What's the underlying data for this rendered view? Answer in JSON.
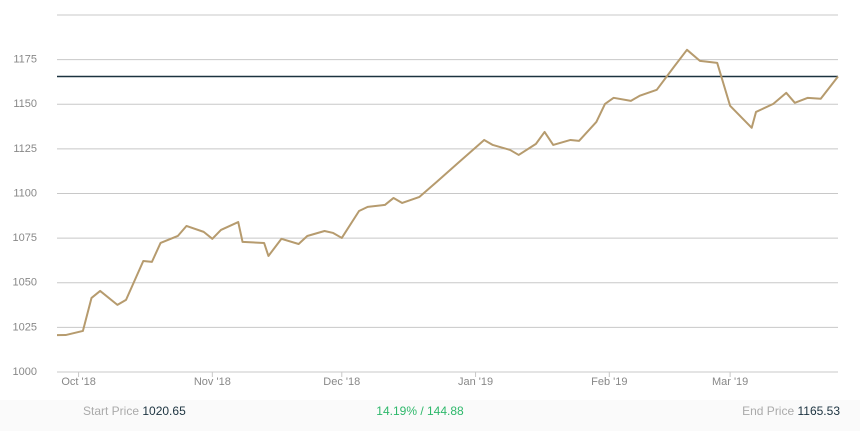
{
  "chart_data": {
    "type": "line",
    "x": [
      -5,
      -3,
      1,
      3,
      5,
      9,
      11,
      15,
      17,
      19,
      23,
      25,
      29,
      31,
      33,
      37,
      38,
      43,
      44,
      47,
      51,
      53,
      57,
      59,
      61,
      65,
      67,
      71,
      73,
      75,
      79,
      83,
      88,
      94,
      96,
      100,
      102,
      106,
      108,
      110,
      114,
      116,
      120,
      122,
      124,
      128,
      130,
      134,
      138,
      141,
      144,
      148,
      151,
      156,
      157,
      161,
      164,
      166,
      169,
      172,
      176
    ],
    "values": [
      1020.65,
      1020.7,
      1023,
      1041.5,
      1045.4,
      1037.6,
      1040.4,
      1062.2,
      1061.7,
      1072.3,
      1076.2,
      1081.8,
      1078.5,
      1074.6,
      1079.6,
      1084,
      1072.9,
      1072.3,
      1065,
      1074.6,
      1071.7,
      1076.2,
      1079,
      1077.9,
      1075.1,
      1090.2,
      1092.5,
      1093.6,
      1097.5,
      1094.7,
      1098.1,
      1106.5,
      1117.2,
      1130,
      1127.2,
      1124.4,
      1121.6,
      1127.8,
      1134.5,
      1127.2,
      1130,
      1129.5,
      1140.1,
      1150.2,
      1153.6,
      1151.9,
      1154.7,
      1158.1,
      1171,
      1180.5,
      1174.3,
      1173.2,
      1149.1,
      1136.8,
      1145.7,
      1150.2,
      1156.4,
      1150.8,
      1153.6,
      1153.1,
      1165.53
    ],
    "color": "#b69b6e",
    "reference_line": 1165.53,
    "reference_color": "#1c3340",
    "xlim": [
      -5,
      176
    ],
    "xticks": [
      {
        "value": 0,
        "label": "Oct '18"
      },
      {
        "value": 31,
        "label": "Nov '18"
      },
      {
        "value": 61,
        "label": "Dec '18"
      },
      {
        "value": 92,
        "label": "Jan '19"
      },
      {
        "value": 123,
        "label": "Feb '19"
      },
      {
        "value": 151,
        "label": "Mar '19"
      }
    ],
    "ylim": [
      1000,
      1200
    ],
    "yticks": [
      1000,
      1025,
      1050,
      1075,
      1100,
      1125,
      1150,
      1175
    ],
    "grid": true
  },
  "footer": {
    "start_label": "Start Price",
    "start_value": "1020.65",
    "change": "14.19% / 144.88",
    "end_label": "End Price",
    "end_value": "1165.53"
  }
}
